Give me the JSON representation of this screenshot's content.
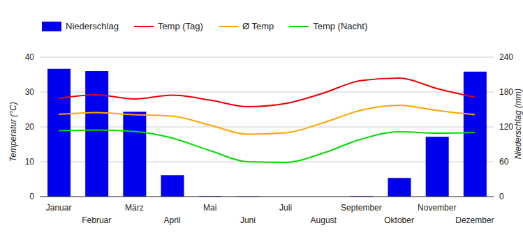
{
  "chart_data": {
    "type": "bar",
    "categories": [
      "Januar",
      "Februar",
      "März",
      "April",
      "Mai",
      "Juni",
      "Juli",
      "August",
      "September",
      "Oktober",
      "November",
      "Dezember"
    ],
    "series": [
      {
        "name": "Niederschlag",
        "type": "bar",
        "axis": "y2",
        "color": "#0000ee",
        "values": [
          220,
          216,
          146,
          37,
          1,
          0.5,
          0,
          0,
          1,
          32,
          103,
          215
        ]
      },
      {
        "name": "Temp (Tag)",
        "type": "line",
        "color": "#ee0000",
        "values": [
          28.2,
          29.2,
          28,
          29.1,
          27.7,
          25.8,
          26.7,
          29.7,
          33.3,
          34,
          31,
          28.5
        ]
      },
      {
        "name": "Ø Temp",
        "type": "line",
        "color": "#ffa500",
        "values": [
          23.6,
          24.1,
          23.5,
          23.1,
          20.5,
          17.9,
          18.3,
          21.2,
          24.8,
          26.2,
          24.7,
          23.5
        ]
      },
      {
        "name": "Temp (Nacht)",
        "type": "line",
        "color": "#00dd00",
        "values": [
          18.9,
          19.1,
          18.7,
          16.8,
          13.2,
          10,
          9.8,
          12.5,
          16.5,
          18.6,
          18.2,
          18.4
        ]
      }
    ],
    "y_label": "Temperatur (°C)",
    "y2_label": "Niederschlag (mm)",
    "ylim": [
      0,
      40
    ],
    "yticks": [
      0,
      10,
      20,
      30,
      40
    ],
    "y2lim": [
      0,
      240
    ],
    "y2ticks": [
      0,
      60,
      120,
      180,
      240
    ],
    "grid": true,
    "legend": "top"
  }
}
